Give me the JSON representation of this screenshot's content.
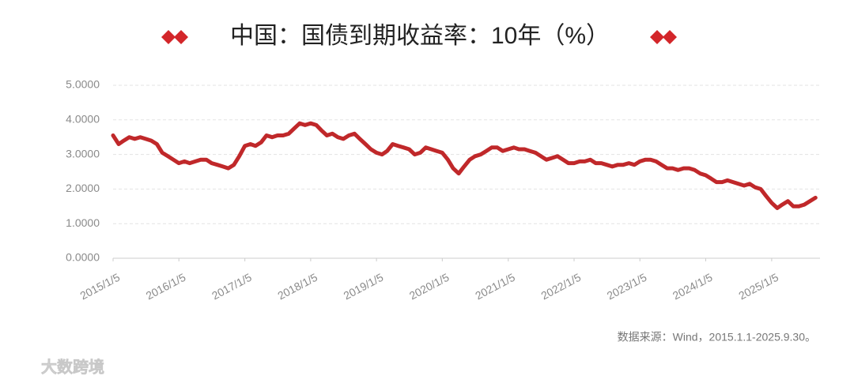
{
  "chart_data": {
    "type": "line",
    "title": "中国：国债到期收益率：10年（%）",
    "source": "数据来源：Wind，2015.1.1-2025.9.30。",
    "watermark": "大数跨境",
    "x": [
      "2015/1/5",
      "2015/2/5",
      "2015/3/5",
      "2015/4/5",
      "2015/5/5",
      "2015/6/5",
      "2015/7/5",
      "2015/8/5",
      "2015/9/5",
      "2015/10/5",
      "2015/11/5",
      "2015/12/5",
      "2016/1/5",
      "2016/2/5",
      "2016/3/5",
      "2016/4/5",
      "2016/5/5",
      "2016/6/5",
      "2016/7/5",
      "2016/8/5",
      "2016/9/5",
      "2016/10/5",
      "2016/11/5",
      "2016/12/5",
      "2017/1/5",
      "2017/2/5",
      "2017/3/5",
      "2017/4/5",
      "2017/5/5",
      "2017/6/5",
      "2017/7/5",
      "2017/8/5",
      "2017/9/5",
      "2017/10/5",
      "2017/11/5",
      "2017/12/5",
      "2018/1/5",
      "2018/2/5",
      "2018/3/5",
      "2018/4/5",
      "2018/5/5",
      "2018/6/5",
      "2018/7/5",
      "2018/8/5",
      "2018/9/5",
      "2018/10/5",
      "2018/11/5",
      "2018/12/5",
      "2019/1/5",
      "2019/2/5",
      "2019/3/5",
      "2019/4/5",
      "2019/5/5",
      "2019/6/5",
      "2019/7/5",
      "2019/8/5",
      "2019/9/5",
      "2019/10/5",
      "2019/11/5",
      "2019/12/5",
      "2020/1/5",
      "2020/2/5",
      "2020/3/5",
      "2020/4/5",
      "2020/5/5",
      "2020/6/5",
      "2020/7/5",
      "2020/8/5",
      "2020/9/5",
      "2020/10/5",
      "2020/11/5",
      "2020/12/5",
      "2021/1/5",
      "2021/2/5",
      "2021/3/5",
      "2021/4/5",
      "2021/5/5",
      "2021/6/5",
      "2021/7/5",
      "2021/8/5",
      "2021/9/5",
      "2021/10/5",
      "2021/11/5",
      "2021/12/5",
      "2022/1/5",
      "2022/2/5",
      "2022/3/5",
      "2022/4/5",
      "2022/5/5",
      "2022/6/5",
      "2022/7/5",
      "2022/8/5",
      "2022/9/5",
      "2022/10/5",
      "2022/11/5",
      "2022/12/5",
      "2023/1/5",
      "2023/2/5",
      "2023/3/5",
      "2023/4/5",
      "2023/5/5",
      "2023/6/5",
      "2023/7/5",
      "2023/8/5",
      "2023/9/5",
      "2023/10/5",
      "2023/11/5",
      "2023/12/5",
      "2024/1/5",
      "2024/2/5",
      "2024/3/5",
      "2024/4/5",
      "2024/5/5",
      "2024/6/5",
      "2024/7/5",
      "2024/8/5",
      "2024/9/5",
      "2024/10/5",
      "2024/11/5",
      "2024/12/5",
      "2025/1/5",
      "2025/2/5",
      "2025/3/5",
      "2025/4/5",
      "2025/5/5",
      "2025/6/5",
      "2025/7/5",
      "2025/8/5",
      "2025/9/5"
    ],
    "series": [
      {
        "name": "国债到期收益率：10年",
        "color": "#c0282a",
        "values": [
          3.55,
          3.3,
          3.4,
          3.5,
          3.45,
          3.5,
          3.45,
          3.4,
          3.3,
          3.05,
          2.95,
          2.85,
          2.75,
          2.8,
          2.75,
          2.8,
          2.85,
          2.85,
          2.75,
          2.7,
          2.65,
          2.6,
          2.7,
          2.95,
          3.25,
          3.3,
          3.25,
          3.35,
          3.55,
          3.5,
          3.55,
          3.55,
          3.6,
          3.75,
          3.9,
          3.85,
          3.9,
          3.85,
          3.7,
          3.55,
          3.6,
          3.5,
          3.45,
          3.55,
          3.6,
          3.45,
          3.3,
          3.15,
          3.05,
          3.0,
          3.1,
          3.3,
          3.25,
          3.2,
          3.15,
          3.0,
          3.05,
          3.2,
          3.15,
          3.1,
          3.05,
          2.85,
          2.6,
          2.45,
          2.65,
          2.85,
          2.95,
          3.0,
          3.1,
          3.2,
          3.2,
          3.1,
          3.15,
          3.2,
          3.15,
          3.15,
          3.1,
          3.05,
          2.95,
          2.85,
          2.9,
          2.95,
          2.85,
          2.75,
          2.75,
          2.8,
          2.8,
          2.85,
          2.75,
          2.75,
          2.7,
          2.65,
          2.7,
          2.7,
          2.75,
          2.7,
          2.8,
          2.85,
          2.85,
          2.8,
          2.7,
          2.6,
          2.6,
          2.55,
          2.6,
          2.6,
          2.55,
          2.45,
          2.4,
          2.3,
          2.2,
          2.2,
          2.25,
          2.2,
          2.15,
          2.1,
          2.15,
          2.05,
          2.0,
          1.8,
          1.6,
          1.45,
          1.55,
          1.65,
          1.5,
          1.5,
          1.55,
          1.65,
          1.75
        ]
      }
    ],
    "xlim": [
      "2015/1/5",
      "2025/9/30"
    ],
    "xticks": [
      "2015/1/5",
      "2016/1/5",
      "2017/1/5",
      "2018/1/5",
      "2019/1/5",
      "2020/1/5",
      "2021/1/5",
      "2022/1/5",
      "2023/1/5",
      "2024/1/5",
      "2025/1/5"
    ],
    "ylim": [
      0,
      5
    ],
    "yticks": [
      {
        "value": 0,
        "label": "0.0000"
      },
      {
        "value": 1,
        "label": "1.0000"
      },
      {
        "value": 2,
        "label": "2.0000"
      },
      {
        "value": 3,
        "label": "3.0000"
      },
      {
        "value": 4,
        "label": "4.0000"
      },
      {
        "value": 5,
        "label": "5.0000"
      }
    ],
    "grid": true
  }
}
